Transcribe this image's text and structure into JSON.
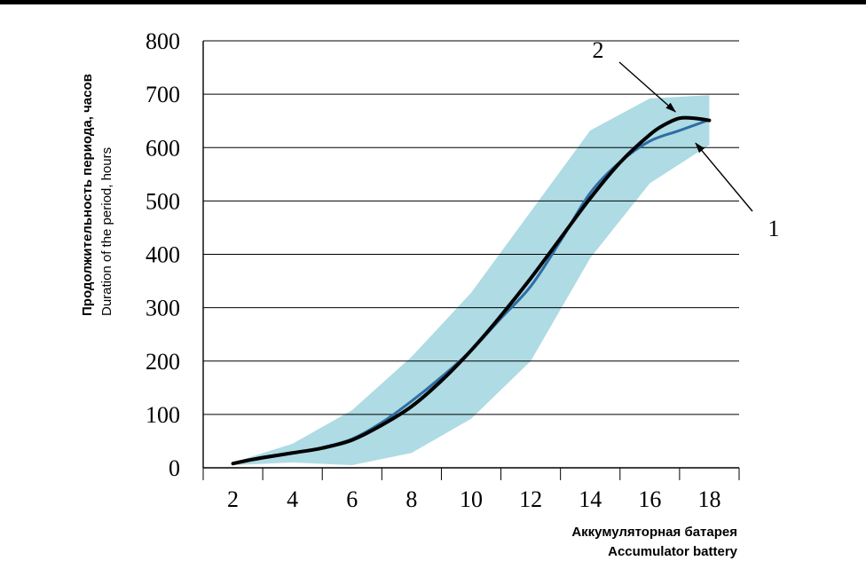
{
  "chart_data": {
    "type": "line",
    "xlabel_ru": "Аккумуляторная батарея",
    "xlabel_en": "Accumulator battery",
    "ylabel_ru": "Продолжительность  периода, часов",
    "ylabel_en": "Duration of the period, hours",
    "xlim": [
      1,
      19
    ],
    "ylim": [
      0,
      800
    ],
    "xticks": [
      2,
      4,
      6,
      8,
      10,
      12,
      14,
      16,
      18
    ],
    "yticks": [
      0,
      100,
      200,
      300,
      400,
      500,
      600,
      700,
      800
    ],
    "grid": "horizontal",
    "band": {
      "x": [
        2,
        4,
        6,
        8,
        10,
        12,
        14,
        16,
        18
      ],
      "lower": [
        5,
        10,
        5,
        28,
        92,
        200,
        393,
        533,
        605
      ],
      "upper": [
        10,
        45,
        108,
        208,
        328,
        480,
        632,
        692,
        698
      ]
    },
    "series": [
      {
        "annotation": "1",
        "x": [
          2,
          3,
          4,
          5,
          6,
          7,
          8,
          9,
          10,
          11,
          12,
          13,
          14,
          15,
          16,
          17,
          18
        ],
        "y": [
          8,
          20,
          27,
          38,
          54,
          85,
          125,
          170,
          220,
          280,
          340,
          425,
          515,
          573,
          612,
          632,
          652
        ]
      },
      {
        "annotation": "2",
        "x": [
          2,
          2.5,
          3,
          4,
          5,
          6,
          7,
          8,
          9,
          10,
          11,
          12,
          13,
          14,
          15,
          16,
          16.5,
          17,
          17.5,
          18
        ],
        "y": [
          8,
          14,
          19,
          28,
          37,
          52,
          80,
          115,
          163,
          220,
          285,
          355,
          430,
          505,
          572,
          624,
          643,
          655,
          655,
          651
        ]
      }
    ],
    "annotations": [
      {
        "label": "1"
      },
      {
        "label": "2"
      }
    ],
    "colors": {
      "band": "#aedbe4",
      "series1": "#2e6da4",
      "series2": "#000000",
      "grid": "#000000"
    }
  }
}
